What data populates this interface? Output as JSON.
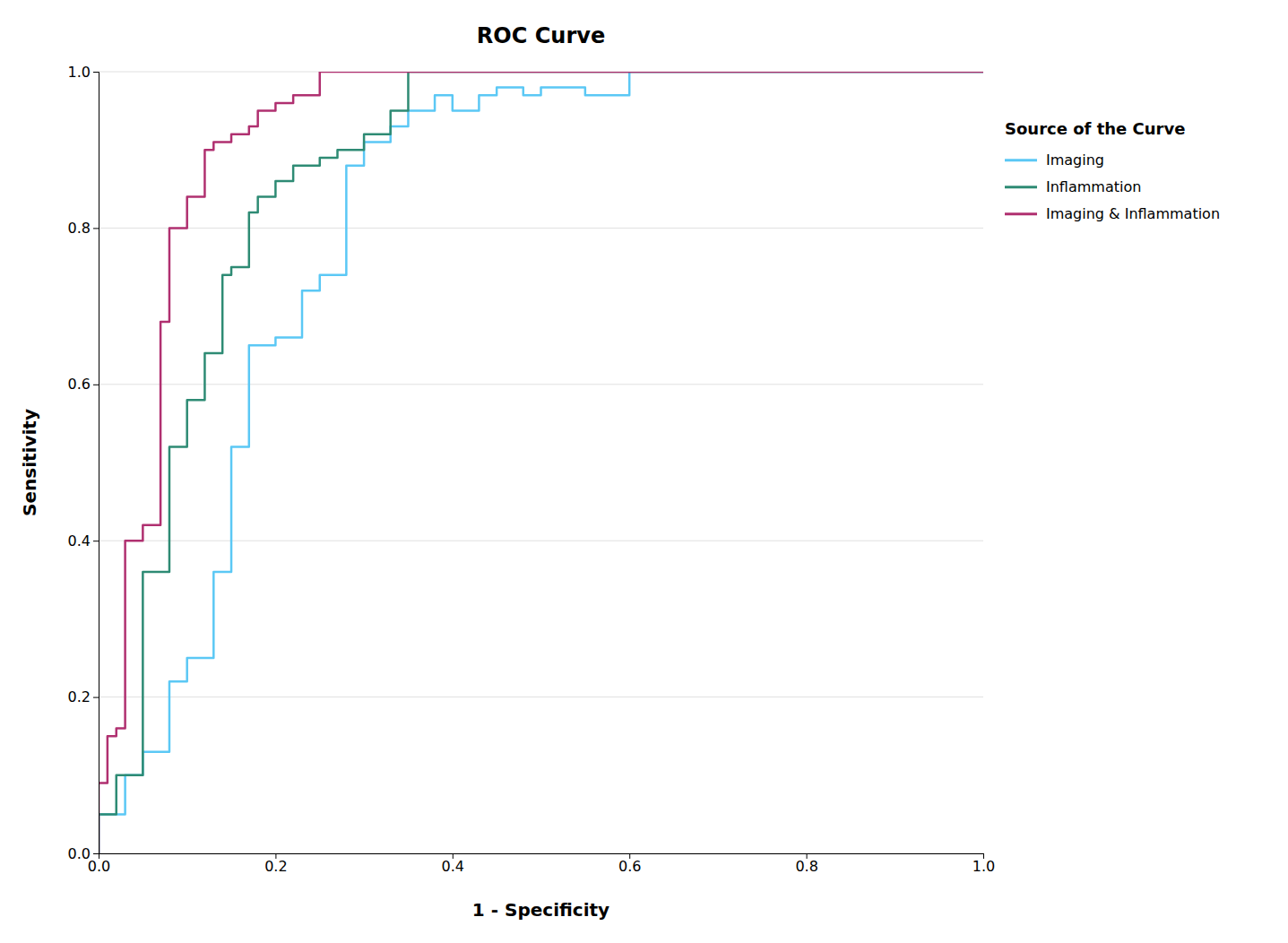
{
  "chart_data": {
    "type": "line",
    "title": "ROC Curve",
    "x_label": "1 - Specificity",
    "y_label": "Sensitivity",
    "legend_title": "Source of the Curve",
    "legend": "right",
    "grid": "y",
    "xlim": [
      0.0,
      1.0
    ],
    "ylim": [
      0.0,
      1.0
    ],
    "xticks": [
      {
        "value": 0.0,
        "label": "0.0"
      },
      0.2,
      0.4,
      0.6,
      0.8,
      {
        "value": 1.0,
        "label": "1.0"
      }
    ],
    "yticks": [
      {
        "value": 0.0,
        "label": "0.0"
      },
      0.2,
      0.4,
      0.6,
      0.8,
      {
        "value": 1.0,
        "label": "1.0"
      }
    ],
    "series": [
      {
        "name": "Imaging",
        "color": "#5bc8f5",
        "x": [
          0.0,
          0.0,
          0.03,
          0.03,
          0.05,
          0.05,
          0.08,
          0.08,
          0.1,
          0.1,
          0.13,
          0.13,
          0.15,
          0.15,
          0.17,
          0.17,
          0.2,
          0.2,
          0.23,
          0.23,
          0.25,
          0.25,
          0.28,
          0.28,
          0.3,
          0.3,
          0.33,
          0.33,
          0.35,
          0.35,
          0.38,
          0.38,
          0.4,
          0.4,
          0.43,
          0.43,
          0.45,
          0.45,
          0.48,
          0.48,
          0.5,
          0.5,
          0.55,
          0.55,
          0.6,
          0.6,
          0.65,
          0.65,
          0.88,
          0.88,
          1.0
        ],
        "values": [
          0.0,
          0.05,
          0.05,
          0.1,
          0.1,
          0.13,
          0.13,
          0.22,
          0.22,
          0.25,
          0.25,
          0.36,
          0.36,
          0.52,
          0.52,
          0.65,
          0.65,
          0.66,
          0.66,
          0.72,
          0.72,
          0.74,
          0.74,
          0.88,
          0.88,
          0.91,
          0.91,
          0.93,
          0.93,
          0.95,
          0.95,
          0.97,
          0.97,
          0.95,
          0.95,
          0.97,
          0.97,
          0.98,
          0.98,
          0.97,
          0.97,
          0.98,
          0.98,
          0.97,
          0.97,
          1.0,
          1.0,
          1.0,
          1.0,
          1.0,
          1.0
        ]
      },
      {
        "name": "Inflammation",
        "color": "#2e8b74",
        "x": [
          0.0,
          0.0,
          0.02,
          0.02,
          0.05,
          0.05,
          0.08,
          0.08,
          0.1,
          0.1,
          0.12,
          0.12,
          0.14,
          0.14,
          0.15,
          0.15,
          0.17,
          0.17,
          0.18,
          0.18,
          0.2,
          0.2,
          0.22,
          0.22,
          0.25,
          0.25,
          0.27,
          0.27,
          0.3,
          0.3,
          0.33,
          0.33,
          0.35,
          0.35,
          0.88,
          0.88,
          1.0
        ],
        "values": [
          0.0,
          0.05,
          0.05,
          0.1,
          0.1,
          0.36,
          0.36,
          0.52,
          0.52,
          0.58,
          0.58,
          0.64,
          0.64,
          0.74,
          0.74,
          0.75,
          0.75,
          0.82,
          0.82,
          0.84,
          0.84,
          0.86,
          0.86,
          0.88,
          0.88,
          0.89,
          0.89,
          0.9,
          0.9,
          0.92,
          0.92,
          0.95,
          0.95,
          1.0,
          1.0,
          1.0,
          1.0
        ]
      },
      {
        "name": "Imaging & Inflammation",
        "color": "#b03070",
        "x": [
          0.0,
          0.0,
          0.01,
          0.01,
          0.02,
          0.02,
          0.03,
          0.03,
          0.05,
          0.05,
          0.07,
          0.07,
          0.08,
          0.08,
          0.1,
          0.1,
          0.12,
          0.12,
          0.13,
          0.13,
          0.15,
          0.15,
          0.17,
          0.17,
          0.18,
          0.18,
          0.2,
          0.2,
          0.22,
          0.22,
          0.25,
          0.25,
          0.3,
          0.3,
          1.0
        ],
        "values": [
          0.0,
          0.09,
          0.09,
          0.15,
          0.15,
          0.16,
          0.16,
          0.4,
          0.4,
          0.42,
          0.42,
          0.68,
          0.68,
          0.8,
          0.8,
          0.84,
          0.84,
          0.9,
          0.9,
          0.91,
          0.91,
          0.92,
          0.92,
          0.93,
          0.93,
          0.95,
          0.95,
          0.96,
          0.96,
          0.97,
          0.97,
          1.0,
          1.0,
          1.0,
          1.0
        ]
      }
    ]
  }
}
